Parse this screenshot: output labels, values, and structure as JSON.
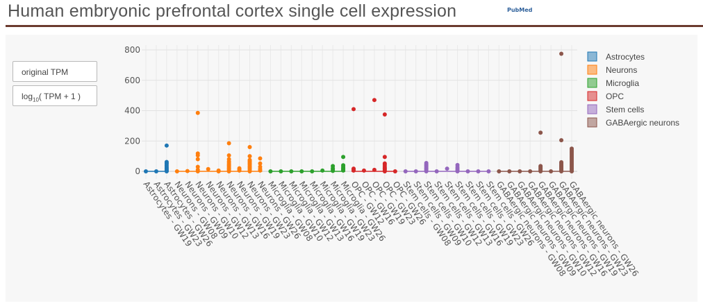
{
  "header": {
    "title": "Human embryonic prefrontal cortex single cell expression",
    "pubmed_label": "PubMed"
  },
  "controls": {
    "original_label": "original TPM",
    "log_prefix": "log",
    "log_sub": "10",
    "log_suffix": "( TPM + 1 )"
  },
  "chart_data": {
    "type": "scatter",
    "title": "",
    "xlabel": "",
    "ylabel": "",
    "ylim": [
      0,
      830
    ],
    "yticks": [
      0,
      200,
      400,
      600,
      800
    ],
    "grid": true,
    "legend_position": "right",
    "categories": [
      "Astrocytes - GW19",
      "Astrocytes - GW23",
      "Astrocytes - GW26",
      "Neurons - GW08",
      "Neurons - GW09",
      "Neurons - GW10",
      "Neurons - GW12",
      "Neurons - GW13",
      "Neurons - GW16",
      "Neurons - GW19",
      "Neurons - GW23",
      "Neurons - GW26",
      "Microglia - GW08",
      "Microglia - GW10",
      "Microglia - GW12",
      "Microglia - GW13",
      "Microglia - GW16",
      "Microglia - GW19",
      "Microglia - GW23",
      "Microglia - GW26",
      "OPC - GW12",
      "OPC - GW16",
      "OPC - GW19",
      "OPC - GW23",
      "OPC - GW26",
      "Stem cells - GW08",
      "Stem cells - GW09",
      "Stem cells - GW10",
      "Stem cells - GW12",
      "Stem cells - GW13",
      "Stem cells - GW16",
      "Stem cells - GW19",
      "Stem cells - GW23",
      "Stem cells - GW26",
      "GABAergic neurons - GW08",
      "GABAergic neurons - GW09",
      "GABAergic neurons - GW10",
      "GABAergic neurons - GW12",
      "GABAergic neurons - GW16",
      "GABAergic neurons - GW19",
      "GABAergic neurons - GW23",
      "GABAergic neurons - GW26"
    ],
    "series": [
      {
        "name": "Astrocytes",
        "color": "#1f77b4",
        "points": [
          [
            0,
            0
          ],
          [
            1,
            0
          ],
          [
            2,
            0
          ],
          [
            2,
            5
          ],
          [
            2,
            12
          ],
          [
            2,
            20
          ],
          [
            2,
            28
          ],
          [
            2,
            38
          ],
          [
            2,
            48
          ],
          [
            2,
            55
          ],
          [
            2,
            62
          ],
          [
            2,
            170
          ]
        ]
      },
      {
        "name": "Neurons",
        "color": "#ff7f0e",
        "points": [
          [
            3,
            0
          ],
          [
            4,
            2
          ],
          [
            5,
            0
          ],
          [
            5,
            10
          ],
          [
            5,
            30
          ],
          [
            5,
            80
          ],
          [
            5,
            105
          ],
          [
            5,
            118
          ],
          [
            5,
            385
          ],
          [
            6,
            15
          ],
          [
            7,
            0
          ],
          [
            7,
            5
          ],
          [
            8,
            0
          ],
          [
            8,
            8
          ],
          [
            8,
            15
          ],
          [
            8,
            22
          ],
          [
            8,
            30
          ],
          [
            8,
            38
          ],
          [
            8,
            45
          ],
          [
            8,
            55
          ],
          [
            8,
            65
          ],
          [
            8,
            80
          ],
          [
            8,
            105
          ],
          [
            8,
            185
          ],
          [
            9,
            5
          ],
          [
            9,
            12
          ],
          [
            9,
            20
          ],
          [
            10,
            0
          ],
          [
            10,
            10
          ],
          [
            10,
            20
          ],
          [
            10,
            28
          ],
          [
            10,
            35
          ],
          [
            10,
            45
          ],
          [
            10,
            52
          ],
          [
            10,
            60
          ],
          [
            10,
            68
          ],
          [
            10,
            75
          ],
          [
            10,
            100
          ],
          [
            10,
            160
          ],
          [
            11,
            5
          ],
          [
            11,
            15
          ],
          [
            11,
            30
          ],
          [
            11,
            52
          ],
          [
            11,
            85
          ]
        ]
      },
      {
        "name": "Microglia",
        "color": "#2ca02c",
        "points": [
          [
            12,
            0
          ],
          [
            13,
            0
          ],
          [
            14,
            0
          ],
          [
            15,
            0
          ],
          [
            16,
            0
          ],
          [
            17,
            5
          ],
          [
            18,
            3
          ],
          [
            18,
            10
          ],
          [
            18,
            20
          ],
          [
            18,
            35
          ],
          [
            19,
            5
          ],
          [
            19,
            10
          ],
          [
            19,
            15
          ],
          [
            19,
            22
          ],
          [
            19,
            30
          ],
          [
            19,
            40
          ],
          [
            19,
            95
          ]
        ]
      },
      {
        "name": "OPC",
        "color": "#d62728",
        "points": [
          [
            20,
            5
          ],
          [
            20,
            12
          ],
          [
            20,
            18
          ],
          [
            20,
            410
          ],
          [
            21,
            5
          ],
          [
            22,
            10
          ],
          [
            22,
            470
          ],
          [
            23,
            0
          ],
          [
            23,
            8
          ],
          [
            23,
            15
          ],
          [
            23,
            22
          ],
          [
            23,
            30
          ],
          [
            23,
            42
          ],
          [
            23,
            52
          ],
          [
            23,
            95
          ],
          [
            23,
            375
          ],
          [
            24,
            0
          ]
        ]
      },
      {
        "name": "Stem cells",
        "color": "#9467bd",
        "points": [
          [
            25,
            0
          ],
          [
            26,
            0
          ],
          [
            27,
            0
          ],
          [
            27,
            8
          ],
          [
            27,
            15
          ],
          [
            27,
            22
          ],
          [
            27,
            30
          ],
          [
            27,
            38
          ],
          [
            27,
            45
          ],
          [
            27,
            55
          ],
          [
            28,
            0
          ],
          [
            29,
            18
          ],
          [
            30,
            0
          ],
          [
            30,
            8
          ],
          [
            30,
            18
          ],
          [
            30,
            28
          ],
          [
            30,
            42
          ],
          [
            31,
            0
          ],
          [
            32,
            0
          ],
          [
            33,
            0
          ]
        ]
      },
      {
        "name": "GABAergic neurons",
        "color": "#8c564b",
        "points": [
          [
            34,
            0
          ],
          [
            35,
            0
          ],
          [
            36,
            0
          ],
          [
            37,
            0
          ],
          [
            38,
            0
          ],
          [
            38,
            5
          ],
          [
            38,
            12
          ],
          [
            38,
            20
          ],
          [
            38,
            28
          ],
          [
            38,
            35
          ],
          [
            38,
            255
          ],
          [
            39,
            0
          ],
          [
            40,
            0
          ],
          [
            40,
            6
          ],
          [
            40,
            12
          ],
          [
            40,
            18
          ],
          [
            40,
            24
          ],
          [
            40,
            30
          ],
          [
            40,
            36
          ],
          [
            40,
            42
          ],
          [
            40,
            48
          ],
          [
            40,
            55
          ],
          [
            40,
            60
          ],
          [
            40,
            205
          ],
          [
            40,
            775
          ],
          [
            41,
            0
          ],
          [
            41,
            10
          ],
          [
            41,
            20
          ],
          [
            41,
            30
          ],
          [
            41,
            40
          ],
          [
            41,
            50
          ],
          [
            41,
            60
          ],
          [
            41,
            70
          ],
          [
            41,
            80
          ],
          [
            41,
            90
          ],
          [
            41,
            100
          ],
          [
            41,
            110
          ],
          [
            41,
            120
          ],
          [
            41,
            130
          ],
          [
            41,
            140
          ],
          [
            41,
            150
          ]
        ]
      }
    ]
  }
}
